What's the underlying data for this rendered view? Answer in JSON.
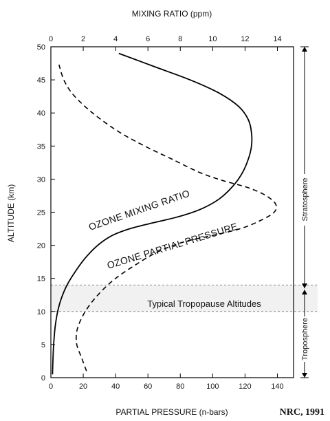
{
  "chart_data": {
    "type": "line",
    "y_axis": {
      "label": "ALTITUDE (km)",
      "ticks": [
        0,
        5,
        10,
        15,
        20,
        25,
        30,
        35,
        40,
        45,
        50
      ],
      "range": [
        0,
        50
      ]
    },
    "x_axis_bottom": {
      "label": "PARTIAL PRESSURE (n-bars)",
      "ticks": [
        0,
        20,
        40,
        60,
        80,
        100,
        120,
        140
      ],
      "range": [
        0,
        150
      ]
    },
    "x_axis_top": {
      "label": "MIXING RATIO (ppm)",
      "ticks": [
        0,
        2,
        4,
        6,
        8,
        10,
        12,
        14
      ],
      "range": [
        0,
        15
      ]
    },
    "series": [
      {
        "name": "OZONE MIXING RATIO",
        "axis": "top",
        "style": "solid",
        "points": [
          [
            0.1,
            0.5
          ],
          [
            0.12,
            2
          ],
          [
            0.15,
            4
          ],
          [
            0.2,
            6
          ],
          [
            0.28,
            8
          ],
          [
            0.42,
            10
          ],
          [
            0.65,
            12
          ],
          [
            1.0,
            14
          ],
          [
            1.5,
            16
          ],
          [
            2.1,
            18
          ],
          [
            2.9,
            20
          ],
          [
            3.8,
            21.5
          ],
          [
            5.0,
            22.6
          ],
          [
            6.5,
            23.5
          ],
          [
            8.0,
            24.4
          ],
          [
            9.3,
            25.5
          ],
          [
            10.4,
            27.0
          ],
          [
            11.2,
            28.8
          ],
          [
            11.8,
            30.8
          ],
          [
            12.2,
            33.0
          ],
          [
            12.4,
            35.0
          ],
          [
            12.4,
            37.0
          ],
          [
            12.2,
            39.0
          ],
          [
            11.6,
            41.0
          ],
          [
            10.4,
            43.0
          ],
          [
            8.6,
            45.0
          ],
          [
            6.4,
            47.0
          ],
          [
            4.2,
            49.0
          ]
        ]
      },
      {
        "name": "OZONE PARTIAL PRESSURE",
        "axis": "bottom",
        "style": "dashed",
        "points": [
          [
            22,
            1
          ],
          [
            19,
            3
          ],
          [
            16,
            5
          ],
          [
            16,
            7
          ],
          [
            19,
            9
          ],
          [
            24,
            11
          ],
          [
            31,
            13
          ],
          [
            40,
            15
          ],
          [
            52,
            17
          ],
          [
            66,
            19
          ],
          [
            82,
            20.5
          ],
          [
            100,
            21.5
          ],
          [
            117,
            22.5
          ],
          [
            130,
            23.8
          ],
          [
            138,
            25.0
          ],
          [
            139,
            26.2
          ],
          [
            133,
            27.5
          ],
          [
            122,
            28.7
          ],
          [
            106,
            29.8
          ],
          [
            92,
            31
          ],
          [
            75,
            33
          ],
          [
            58,
            35
          ],
          [
            43,
            37
          ],
          [
            31,
            39
          ],
          [
            21,
            41
          ],
          [
            13,
            43
          ],
          [
            8,
            45
          ],
          [
            5,
            47.3
          ]
        ]
      }
    ],
    "annotations": {
      "tropopause_label": "Typical Tropopause Altitudes",
      "tropopause_band": [
        10,
        14
      ],
      "stratosphere_label": "Stratosphere",
      "troposphere_label": "Troposphere",
      "stratosphere_range": [
        13.5,
        50
      ],
      "troposphere_range": [
        0,
        13.5
      ]
    },
    "credit": "NRC, 1991"
  }
}
